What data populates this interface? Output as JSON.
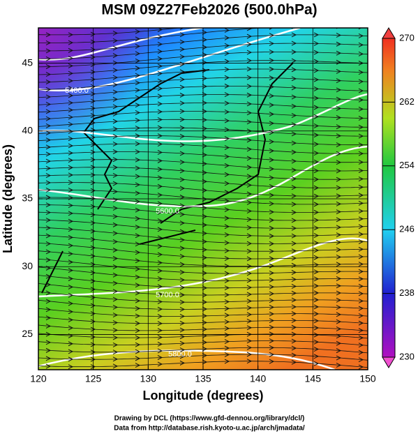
{
  "chart_data": {
    "type": "map",
    "title": "MSM 09Z27Feb2026 (500.0hPa)",
    "xlabel": "Longitude (degrees)",
    "ylabel": "Latitude  (degrees)",
    "xlim": [
      120,
      150
    ],
    "xticks": [
      120,
      125,
      130,
      135,
      140,
      145,
      150
    ],
    "ylim": [
      22.4,
      47.6
    ],
    "yticks": [
      25,
      30,
      35,
      40,
      45
    ],
    "grid": true,
    "colorbar": {
      "lim": [
        230,
        270
      ],
      "ticks": [
        230,
        238,
        246,
        254,
        262,
        270
      ]
    },
    "contour_labels": [
      "5400.0",
      "5600.0",
      "5700.0",
      "5800.0"
    ],
    "footer": [
      "Drawing by DCL (https://www.gfd-dennou.org/library/dcl/)",
      "Data from http://database.rish.kyoto-u.ac.jp/arch/jmadata/"
    ]
  }
}
